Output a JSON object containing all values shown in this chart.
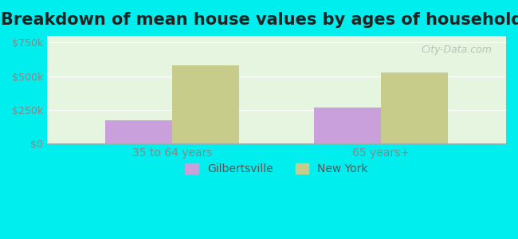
{
  "title": "Breakdown of mean house values by ages of householders",
  "categories": [
    "35 to 64 years",
    "65 years+"
  ],
  "series": [
    {
      "name": "Gilbertsville",
      "values": [
        175000,
        265000
      ],
      "color": "#c9a0dc"
    },
    {
      "name": "New York",
      "values": [
        580000,
        530000
      ],
      "color": "#c8cc8a"
    }
  ],
  "ylim": [
    0,
    800000
  ],
  "yticks": [
    0,
    250000,
    500000,
    750000
  ],
  "ytick_labels": [
    "$0",
    "$250k",
    "$500k",
    "$750k"
  ],
  "background_color": "#00eeee",
  "plot_bg_color_top": "#e8f5e0",
  "plot_bg_color_bottom": "#d0f0f0",
  "title_fontsize": 15,
  "legend_fontsize": 10,
  "tick_fontsize": 9,
  "bar_width": 0.32,
  "watermark": "City-Data.com"
}
